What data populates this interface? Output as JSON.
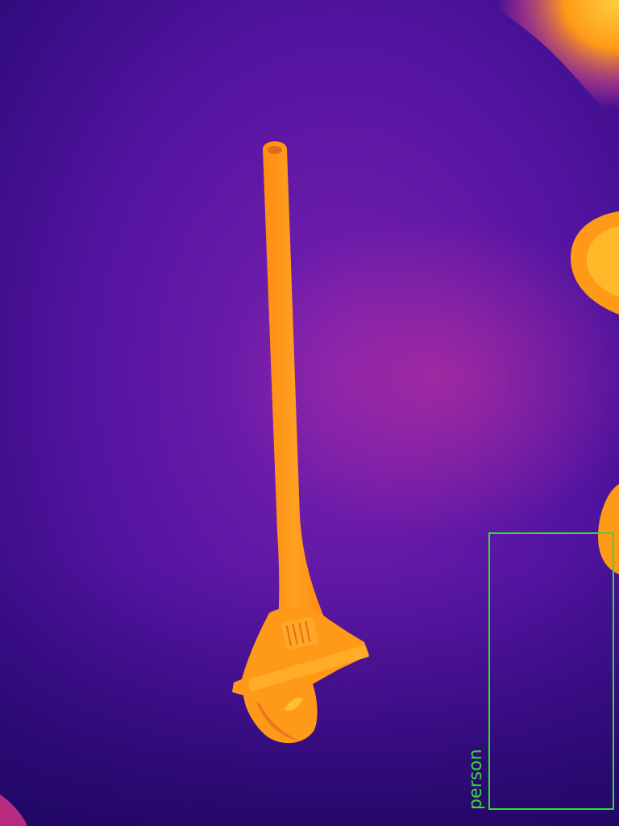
{
  "image": {
    "palette": "thermal",
    "colors": {
      "background_dark": "#2a0a6e",
      "background_mid": "#6a1aa8",
      "warm_haze": "#9a2aa0",
      "hot": "#ff9a10",
      "hottest": "#ffc828",
      "detection_box": "#33dd33"
    }
  },
  "detections": [
    {
      "label": "person"
    }
  ]
}
